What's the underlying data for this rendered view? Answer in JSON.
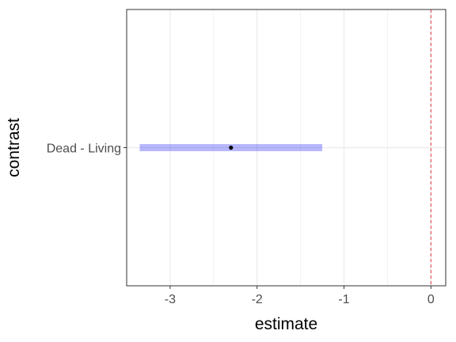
{
  "chart_data": {
    "type": "interval",
    "title": "",
    "xlabel": "estimate",
    "ylabel": "contrast",
    "xlim": [
      -3.5,
      0.17
    ],
    "x_ticks": [
      -3,
      -2,
      -1,
      0
    ],
    "x_tick_labels": [
      "-3",
      "-2",
      "-1",
      "0"
    ],
    "categories": [
      "Dead - Living"
    ],
    "points": [
      {
        "contrast": "Dead - Living",
        "estimate": -2.3,
        "lower": -3.35,
        "upper": -1.25
      }
    ],
    "reference_line": {
      "x": 0,
      "color": "#e8474c",
      "style": "dashed"
    },
    "interval_color": "#0000ff",
    "point_color": "#000000",
    "grid": true,
    "legend": "none"
  }
}
